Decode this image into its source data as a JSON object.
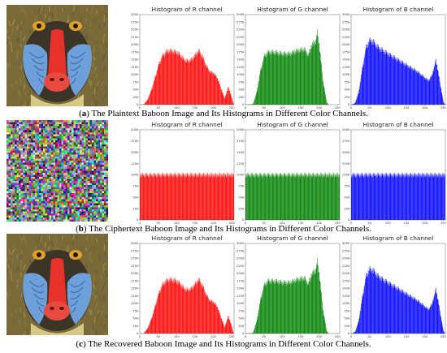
{
  "panels": [
    {
      "image_kind": "baboon",
      "caption": {
        "label": "a",
        "text": "The Plaintext Baboon Image and Its Histograms in Different Color Channels."
      }
    },
    {
      "image_kind": "noise",
      "caption": {
        "label": "b",
        "text": "The Ciphertext Baboon Image and Its Histograms in Different Color Channels."
      }
    },
    {
      "image_kind": "baboon",
      "caption": {
        "label": "c",
        "text": "The Recovered Baboon Image and Its Histograms in Different Color Channels."
      }
    }
  ],
  "chart_data": [
    {
      "panel": "a",
      "type": "bar",
      "title": "Histogram of R channel",
      "color": "#ff0000",
      "xlim": [
        0,
        256
      ],
      "ylim": [
        0,
        3000
      ],
      "xticks": [
        0,
        50,
        100,
        150,
        200,
        250
      ],
      "yticks": [
        0,
        250,
        500,
        750,
        1000,
        1250,
        1500,
        1750,
        2000,
        2250,
        2500,
        2750,
        3000
      ],
      "x": [
        0,
        10,
        20,
        30,
        40,
        50,
        60,
        70,
        80,
        90,
        100,
        110,
        120,
        130,
        140,
        150,
        160,
        170,
        180,
        190,
        200,
        210,
        220,
        230,
        235,
        240,
        245,
        250,
        255
      ],
      "values": [
        0,
        10,
        150,
        450,
        850,
        1300,
        1600,
        1750,
        1800,
        1780,
        1750,
        1650,
        1500,
        1450,
        1500,
        1650,
        1800,
        1600,
        1300,
        1100,
        1050,
        900,
        550,
        200,
        400,
        600,
        400,
        200,
        0
      ]
    },
    {
      "panel": "a",
      "type": "bar",
      "title": "Histogram of G channel",
      "color": "#008000",
      "xlim": [
        0,
        256
      ],
      "ylim": [
        0,
        3000
      ],
      "xticks": [
        0,
        50,
        100,
        150,
        200,
        250
      ],
      "yticks": [
        0,
        250,
        500,
        750,
        1000,
        1250,
        1500,
        1750,
        2000,
        2250,
        2500,
        2750,
        3000
      ],
      "x": [
        0,
        20,
        30,
        40,
        50,
        60,
        80,
        100,
        120,
        140,
        160,
        170,
        180,
        190,
        195,
        200,
        210,
        220,
        225
      ],
      "values": [
        0,
        20,
        400,
        1100,
        1600,
        1750,
        1750,
        1700,
        1700,
        1800,
        1850,
        1650,
        2000,
        2100,
        2400,
        2000,
        800,
        100,
        0
      ]
    },
    {
      "panel": "a",
      "type": "bar",
      "title": "Histogram of B channel",
      "color": "#0000ff",
      "xlim": [
        0,
        256
      ],
      "ylim": [
        0,
        3000
      ],
      "xticks": [
        0,
        50,
        100,
        150,
        200,
        250
      ],
      "yticks": [
        0,
        250,
        500,
        750,
        1000,
        1250,
        1500,
        1750,
        2000,
        2250,
        2500,
        2750,
        3000
      ],
      "x": [
        0,
        10,
        20,
        30,
        40,
        50,
        60,
        70,
        80,
        100,
        120,
        140,
        160,
        180,
        200,
        210,
        220,
        230,
        240,
        250,
        255
      ],
      "values": [
        0,
        50,
        400,
        1200,
        1900,
        2150,
        2100,
        1950,
        1850,
        1700,
        1550,
        1400,
        1250,
        1100,
        900,
        800,
        1000,
        1500,
        800,
        100,
        0
      ]
    },
    {
      "panel": "b",
      "type": "bar",
      "title": "Histogram of R channel",
      "color": "#ff0000",
      "xlim": [
        0,
        256
      ],
      "ylim": [
        0,
        2000
      ],
      "xticks": [
        0,
        50,
        100,
        150,
        200,
        250
      ],
      "yticks": [
        0,
        250,
        500,
        750,
        1000,
        1250,
        1500,
        1750,
        2000
      ],
      "x": [
        0,
        255
      ],
      "values": [
        1000,
        1000
      ]
    },
    {
      "panel": "b",
      "type": "bar",
      "title": "Histogram of G channel",
      "color": "#008000",
      "xlim": [
        0,
        256
      ],
      "ylim": [
        0,
        2000
      ],
      "xticks": [
        0,
        50,
        100,
        150,
        200,
        250
      ],
      "yticks": [
        0,
        250,
        500,
        750,
        1000,
        1250,
        1500,
        1750,
        2000
      ],
      "x": [
        0,
        255
      ],
      "values": [
        1000,
        1000
      ]
    },
    {
      "panel": "b",
      "type": "bar",
      "title": "Histogram of B channel",
      "color": "#0000ff",
      "xlim": [
        0,
        256
      ],
      "ylim": [
        0,
        2000
      ],
      "xticks": [
        0,
        50,
        100,
        150,
        200,
        250
      ],
      "yticks": [
        0,
        250,
        500,
        750,
        1000,
        1250,
        1500,
        1750,
        2000
      ],
      "x": [
        0,
        255
      ],
      "values": [
        1000,
        1000
      ]
    },
    {
      "panel": "c",
      "type": "bar",
      "title": "Histogram of R channel",
      "color": "#ff0000",
      "xlim": [
        0,
        256
      ],
      "ylim": [
        0,
        3000
      ],
      "xticks": [
        0,
        50,
        100,
        150,
        200,
        250
      ],
      "yticks": [
        0,
        250,
        500,
        750,
        1000,
        1250,
        1500,
        1750,
        2000,
        2250,
        2500,
        2750,
        3000
      ],
      "x": [
        0,
        10,
        20,
        30,
        40,
        50,
        60,
        70,
        80,
        90,
        100,
        110,
        120,
        130,
        140,
        150,
        160,
        170,
        180,
        190,
        200,
        210,
        220,
        230,
        235,
        240,
        245,
        250,
        255
      ],
      "values": [
        0,
        10,
        150,
        450,
        850,
        1300,
        1600,
        1750,
        1800,
        1780,
        1750,
        1650,
        1500,
        1450,
        1500,
        1650,
        1800,
        1600,
        1300,
        1100,
        1050,
        900,
        550,
        200,
        400,
        600,
        400,
        200,
        0
      ]
    },
    {
      "panel": "c",
      "type": "bar",
      "title": "Histogram of G channel",
      "color": "#008000",
      "xlim": [
        0,
        256
      ],
      "ylim": [
        0,
        3000
      ],
      "xticks": [
        0,
        50,
        100,
        150,
        200,
        250
      ],
      "yticks": [
        0,
        250,
        500,
        750,
        1000,
        1250,
        1500,
        1750,
        2000,
        2250,
        2500,
        2750,
        3000
      ],
      "x": [
        0,
        20,
        30,
        40,
        50,
        60,
        80,
        100,
        120,
        140,
        160,
        170,
        180,
        190,
        195,
        200,
        210,
        220,
        225
      ],
      "values": [
        0,
        20,
        400,
        1100,
        1600,
        1750,
        1750,
        1700,
        1700,
        1800,
        1850,
        1650,
        2000,
        2100,
        2400,
        2000,
        800,
        100,
        0
      ]
    },
    {
      "panel": "c",
      "type": "bar",
      "title": "Histogram of B channel",
      "color": "#0000ff",
      "xlim": [
        0,
        256
      ],
      "ylim": [
        0,
        3000
      ],
      "xticks": [
        0,
        50,
        100,
        150,
        200,
        250
      ],
      "yticks": [
        0,
        250,
        500,
        750,
        1000,
        1250,
        1500,
        1750,
        2000,
        2250,
        2500,
        2750,
        3000
      ],
      "x": [
        0,
        10,
        20,
        30,
        40,
        50,
        60,
        70,
        80,
        100,
        120,
        140,
        160,
        180,
        200,
        210,
        220,
        230,
        240,
        250,
        255
      ],
      "values": [
        0,
        50,
        400,
        1200,
        1900,
        2150,
        2100,
        1950,
        1850,
        1700,
        1550,
        1400,
        1250,
        1100,
        900,
        800,
        1000,
        1500,
        800,
        100,
        0
      ]
    }
  ]
}
